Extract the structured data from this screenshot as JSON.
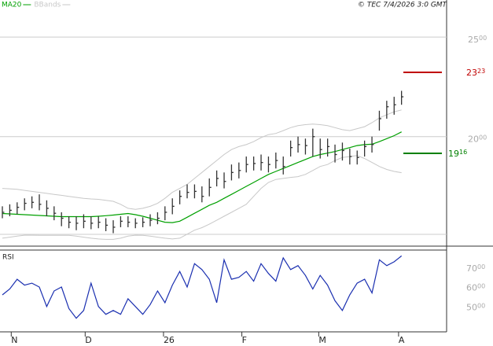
{
  "chart_data": [
    {
      "type": "ohlc",
      "source": "© TEC 7/4/2026 3:0 GMT",
      "x": [
        0,
        1,
        2,
        3,
        4,
        5,
        6,
        7,
        8,
        9,
        10,
        11,
        12,
        13,
        14,
        15,
        16,
        17,
        18,
        19,
        20,
        21,
        22,
        23,
        24,
        25,
        26,
        27,
        28,
        29,
        30,
        31,
        32,
        33,
        34,
        35,
        36,
        37,
        38,
        39,
        40,
        41,
        42,
        43,
        44,
        45,
        46,
        47,
        48,
        49,
        50,
        51,
        52,
        53,
        54
      ],
      "high": [
        1650,
        1660,
        1670,
        1690,
        1700,
        1710,
        1680,
        1650,
        1620,
        1600,
        1600,
        1610,
        1600,
        1600,
        1590,
        1580,
        1600,
        1600,
        1590,
        1595,
        1610,
        1620,
        1650,
        1690,
        1730,
        1760,
        1760,
        1750,
        1790,
        1830,
        1820,
        1860,
        1870,
        1900,
        1900,
        1910,
        1900,
        1920,
        1900,
        1980,
        2000,
        1990,
        2040,
        1990,
        1990,
        1960,
        1970,
        1940,
        1930,
        1980,
        2000,
        2130,
        2180,
        2200,
        2230
      ],
      "low": [
        1590,
        1600,
        1610,
        1630,
        1640,
        1630,
        1600,
        1580,
        1550,
        1540,
        1530,
        1540,
        1535,
        1540,
        1525,
        1515,
        1545,
        1545,
        1540,
        1545,
        1550,
        1560,
        1580,
        1610,
        1660,
        1690,
        1690,
        1670,
        1700,
        1750,
        1740,
        1780,
        1790,
        1820,
        1830,
        1830,
        1820,
        1840,
        1810,
        1900,
        1920,
        1910,
        1900,
        1890,
        1900,
        1870,
        1880,
        1860,
        1860,
        1900,
        1920,
        2030,
        2090,
        2110,
        2160
      ],
      "close": [
        1620,
        1630,
        1645,
        1665,
        1670,
        1660,
        1640,
        1615,
        1590,
        1570,
        1565,
        1575,
        1565,
        1570,
        1555,
        1545,
        1575,
        1570,
        1565,
        1570,
        1580,
        1590,
        1620,
        1650,
        1700,
        1720,
        1725,
        1700,
        1745,
        1790,
        1775,
        1820,
        1830,
        1860,
        1865,
        1870,
        1860,
        1880,
        1850,
        1945,
        1960,
        1955,
        2000,
        1935,
        1950,
        1910,
        1930,
        1900,
        1895,
        1950,
        1960,
        2090,
        2150,
        2160,
        2200
      ],
      "bar_color": "#333333",
      "series": [
        {
          "name": "MA20",
          "color": "#00a000",
          "values": [
            1614,
            1612,
            1610,
            1608,
            1606,
            1604,
            1602,
            1600,
            1598,
            1598,
            1598,
            1598,
            1598,
            1600,
            1603,
            1606,
            1610,
            1614,
            1608,
            1600,
            1590,
            1580,
            1570,
            1568,
            1575,
            1595,
            1615,
            1635,
            1655,
            1670,
            1690,
            1710,
            1730,
            1750,
            1770,
            1790,
            1810,
            1825,
            1840,
            1855,
            1870,
            1885,
            1900,
            1910,
            1917,
            1925,
            1935,
            1945,
            1955,
            1960,
            1962,
            1975,
            1990,
            2005,
            2024
          ]
        },
        {
          "name": "BBands",
          "color": "#c8c8c8",
          "upper": [
            1740,
            1738,
            1735,
            1730,
            1725,
            1720,
            1715,
            1710,
            1705,
            1700,
            1695,
            1690,
            1687,
            1685,
            1680,
            1675,
            1660,
            1640,
            1635,
            1640,
            1650,
            1665,
            1690,
            1720,
            1740,
            1760,
            1790,
            1820,
            1850,
            1880,
            1910,
            1935,
            1950,
            1960,
            1975,
            1995,
            2010,
            2016,
            2030,
            2045,
            2055,
            2060,
            2063,
            2060,
            2055,
            2045,
            2035,
            2030,
            2040,
            2050,
            2070,
            2094,
            2110,
            2125,
            2134
          ],
          "lower": [
            1490,
            1495,
            1500,
            1505,
            1505,
            1504,
            1504,
            1504,
            1504,
            1504,
            1500,
            1495,
            1490,
            1486,
            1484,
            1484,
            1490,
            1500,
            1505,
            1504,
            1500,
            1495,
            1490,
            1486,
            1490,
            1510,
            1530,
            1543,
            1560,
            1580,
            1600,
            1620,
            1640,
            1660,
            1700,
            1740,
            1770,
            1785,
            1790,
            1795,
            1799,
            1810,
            1830,
            1850,
            1860,
            1880,
            1895,
            1900,
            1905,
            1890,
            1870,
            1850,
            1835,
            1825,
            1819
          ]
        }
      ],
      "levels": [
        {
          "value": 2323,
          "color": "#c00000"
        },
        {
          "value": 1916,
          "color": "#008000"
        }
      ],
      "xlim": [
        -0.32,
        60.1
      ],
      "ylim": [
        1450,
        2615
      ],
      "yticks": [
        2000,
        2500
      ],
      "grid": true
    },
    {
      "type": "line",
      "label": "RSI",
      "x": [
        0,
        1,
        2,
        3,
        4,
        5,
        6,
        7,
        8,
        9,
        10,
        11,
        12,
        13,
        14,
        15,
        16,
        17,
        18,
        19,
        20,
        21,
        22,
        23,
        24,
        25,
        26,
        27,
        28,
        29,
        30,
        31,
        32,
        33,
        34,
        35,
        36,
        37,
        38,
        39,
        40,
        41,
        42,
        43,
        44,
        45,
        46,
        47,
        48,
        49,
        50,
        51,
        52,
        53,
        54
      ],
      "series": [
        {
          "color": "#1a2fb0",
          "values": [
            55,
            58,
            63,
            60,
            61,
            59,
            49,
            57,
            59,
            48,
            43,
            47,
            61,
            49,
            45,
            47,
            45,
            53,
            49,
            45,
            50,
            57,
            51,
            60,
            67,
            59,
            71,
            68,
            63,
            51,
            73,
            63,
            64,
            67,
            62,
            71,
            66,
            62,
            74,
            68,
            70,
            65,
            58,
            65,
            60,
            52,
            47,
            55,
            61,
            63,
            56,
            73,
            70,
            72,
            75
          ]
        }
      ],
      "xlim": [
        -0.32,
        60.1
      ],
      "ylim": [
        36,
        78
      ],
      "yticks": [
        {
          "value": 70,
          "label": "7000"
        },
        {
          "value": 60,
          "label": "6000"
        },
        {
          "value": 50,
          "label": "5000"
        }
      ],
      "xticks": [
        {
          "value": 1.2,
          "label": "N"
        },
        {
          "value": 11.2,
          "label": "D"
        },
        {
          "value": 21.8,
          "label": "26"
        },
        {
          "value": 32.4,
          "label": "F"
        },
        {
          "value": 42.8,
          "label": "M"
        },
        {
          "value": 53.6,
          "label": "A"
        }
      ]
    }
  ]
}
